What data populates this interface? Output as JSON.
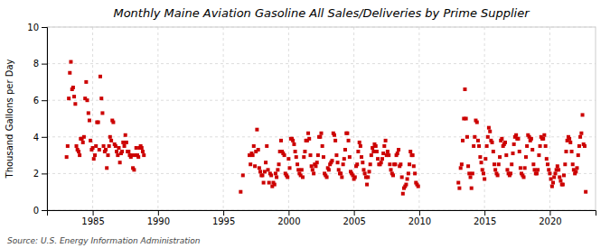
{
  "chart_data": {
    "type": "scatter",
    "title": "Monthly Maine Aviation Gasoline All Sales/Deliveries by Prime Supplier",
    "y_label": "Thousand Gallons per Day",
    "source": "Source: U.S. Energy Information Administration",
    "color": "#cc0000",
    "marker": "square",
    "grid": true,
    "xlim": [
      1981.5,
      2023.5
    ],
    "ylim": [
      0,
      10
    ],
    "xticks": [
      1985,
      1990,
      1995,
      2000,
      2005,
      2010,
      2015,
      2020
    ],
    "yticks": [
      0,
      2,
      4,
      6,
      8,
      10
    ],
    "x": [
      1983.0,
      1983.08,
      1983.17,
      1983.25,
      1983.33,
      1983.42,
      1983.5,
      1983.58,
      1983.67,
      1983.75,
      1983.83,
      1983.92,
      1984.0,
      1984.08,
      1984.17,
      1984.25,
      1984.33,
      1984.42,
      1984.5,
      1984.58,
      1984.67,
      1984.75,
      1984.83,
      1984.92,
      1985.0,
      1985.08,
      1985.17,
      1985.25,
      1985.33,
      1985.42,
      1985.5,
      1985.58,
      1985.67,
      1985.75,
      1985.83,
      1985.92,
      1986.0,
      1986.08,
      1986.17,
      1986.25,
      1986.33,
      1986.42,
      1986.5,
      1986.58,
      1986.67,
      1986.75,
      1986.83,
      1986.92,
      1987.0,
      1987.08,
      1987.17,
      1987.25,
      1987.33,
      1987.42,
      1987.5,
      1987.58,
      1987.67,
      1987.75,
      1987.83,
      1987.92,
      1988.0,
      1988.08,
      1988.17,
      1988.25,
      1988.33,
      1988.42,
      1988.5,
      1988.58,
      1988.67,
      1988.75,
      1988.83,
      1988.92,
      1996.33,
      1996.5,
      1997.0,
      1997.08,
      1997.17,
      1997.25,
      1997.33,
      1997.42,
      1997.5,
      1997.58,
      1997.67,
      1997.75,
      1997.83,
      1997.92,
      1998.0,
      1998.08,
      1998.17,
      1998.25,
      1998.33,
      1998.42,
      1998.5,
      1998.58,
      1998.67,
      1998.75,
      1998.83,
      1998.92,
      1999.0,
      1999.08,
      1999.17,
      1999.25,
      1999.33,
      1999.42,
      1999.5,
      1999.58,
      1999.67,
      1999.75,
      1999.83,
      1999.92,
      2000.0,
      2000.08,
      2000.17,
      2000.25,
      2000.33,
      2000.42,
      2000.5,
      2000.58,
      2000.67,
      2000.75,
      2000.83,
      2000.92,
      2001.0,
      2001.08,
      2001.17,
      2001.25,
      2001.33,
      2001.42,
      2001.5,
      2001.58,
      2001.67,
      2001.75,
      2001.83,
      2001.92,
      2002.0,
      2002.08,
      2002.17,
      2002.25,
      2002.33,
      2002.42,
      2002.5,
      2002.58,
      2002.67,
      2002.75,
      2002.83,
      2002.92,
      2003.0,
      2003.08,
      2003.17,
      2003.25,
      2003.33,
      2003.42,
      2003.5,
      2003.58,
      2003.67,
      2003.75,
      2003.83,
      2003.92,
      2004.0,
      2004.08,
      2004.17,
      2004.25,
      2004.33,
      2004.42,
      2004.5,
      2004.58,
      2004.67,
      2004.75,
      2004.83,
      2004.92,
      2005.0,
      2005.08,
      2005.17,
      2005.25,
      2005.33,
      2005.42,
      2005.5,
      2005.58,
      2005.67,
      2005.75,
      2005.83,
      2005.92,
      2006.0,
      2006.08,
      2006.17,
      2006.25,
      2006.33,
      2006.42,
      2006.5,
      2006.58,
      2006.67,
      2006.75,
      2006.83,
      2006.92,
      2007.0,
      2007.08,
      2007.17,
      2007.25,
      2007.33,
      2007.42,
      2007.5,
      2007.58,
      2007.67,
      2007.75,
      2007.83,
      2007.92,
      2008.0,
      2008.08,
      2008.17,
      2008.25,
      2008.33,
      2008.42,
      2008.5,
      2008.58,
      2008.67,
      2008.75,
      2008.83,
      2008.92,
      2009.0,
      2009.08,
      2009.17,
      2009.25,
      2009.33,
      2009.42,
      2009.5,
      2009.58,
      2009.67,
      2009.75,
      2009.83,
      2009.92,
      2013.0,
      2013.08,
      2013.17,
      2013.25,
      2013.33,
      2013.42,
      2013.5,
      2013.58,
      2013.67,
      2013.75,
      2013.83,
      2013.92,
      2014.0,
      2014.08,
      2014.17,
      2014.25,
      2014.33,
      2014.42,
      2014.5,
      2014.58,
      2014.67,
      2014.75,
      2014.83,
      2014.92,
      2015.0,
      2015.08,
      2015.17,
      2015.25,
      2015.33,
      2015.42,
      2015.5,
      2015.58,
      2015.67,
      2015.75,
      2015.83,
      2015.92,
      2016.0,
      2016.08,
      2016.17,
      2016.25,
      2016.33,
      2016.42,
      2016.5,
      2016.58,
      2016.67,
      2016.75,
      2016.83,
      2016.92,
      2017.0,
      2017.08,
      2017.17,
      2017.25,
      2017.33,
      2017.42,
      2017.5,
      2017.58,
      2017.67,
      2017.75,
      2017.83,
      2017.92,
      2018.0,
      2018.08,
      2018.17,
      2018.25,
      2018.33,
      2018.42,
      2018.5,
      2018.58,
      2018.67,
      2018.75,
      2018.83,
      2018.92,
      2019.0,
      2019.08,
      2019.17,
      2019.25,
      2019.33,
      2019.42,
      2019.5,
      2019.58,
      2019.67,
      2019.75,
      2019.83,
      2019.92,
      2020.0,
      2020.08,
      2020.17,
      2020.25,
      2020.33,
      2020.42,
      2020.5,
      2020.58,
      2020.67,
      2020.75,
      2020.83,
      2020.92,
      2021.0,
      2021.08,
      2021.17,
      2021.25,
      2021.33,
      2021.42,
      2021.5,
      2021.58,
      2021.67,
      2021.75,
      2021.83,
      2021.92,
      2022.0,
      2022.08,
      2022.17,
      2022.25,
      2022.33,
      2022.42,
      2022.5,
      2022.58,
      2022.67,
      2022.75
    ],
    "values": [
      2.9,
      3.5,
      6.1,
      7.5,
      8.1,
      6.6,
      6.7,
      6.2,
      5.8,
      3.5,
      3.3,
      3.2,
      3.0,
      3.9,
      3.9,
      3.7,
      4.0,
      6.1,
      7.0,
      6.0,
      5.3,
      4.9,
      3.8,
      3.3,
      3.4,
      2.8,
      3.0,
      3.5,
      4.8,
      4.8,
      3.3,
      7.3,
      6.1,
      5.3,
      3.5,
      3.2,
      3.3,
      2.3,
      3.0,
      3.5,
      4.0,
      3.8,
      4.9,
      4.8,
      3.6,
      3.5,
      3.2,
      3.0,
      3.4,
      2.6,
      3.1,
      3.2,
      3.7,
      3.5,
      4.1,
      3.7,
      3.2,
      3.2,
      3.0,
      2.9,
      3.0,
      2.3,
      2.2,
      3.0,
      3.4,
      3.0,
      2.9,
      3.4,
      3.5,
      3.4,
      3.2,
      3.0,
      1.0,
      1.9,
      3.0,
      2.5,
      3.1,
      3.0,
      3.5,
      2.4,
      3.2,
      4.4,
      3.3,
      2.3,
      2.1,
      1.9,
      1.9,
      1.5,
      2.1,
      2.6,
      3.5,
      2.2,
      1.5,
      2.0,
      1.9,
      1.3,
      1.5,
      1.4,
      2.0,
      1.8,
      2.2,
      2.5,
      3.2,
      3.8,
      3.2,
      3.1,
      3.0,
      2.0,
      1.9,
      1.8,
      2.8,
      2.3,
      3.9,
      3.9,
      3.8,
      3.6,
      3.2,
      2.9,
      2.5,
      2.2,
      2.0,
      1.9,
      2.2,
      1.8,
      2.9,
      3.2,
      3.8,
      3.8,
      4.2,
      3.9,
      3.0,
      2.4,
      2.2,
      2.0,
      2.5,
      2.4,
      2.6,
      3.0,
      4.0,
      4.0,
      4.2,
      3.5,
      2.9,
      2.0,
      1.9,
      1.8,
      2.3,
      2.2,
      2.5,
      2.6,
      2.7,
      4.2,
      4.1,
      3.8,
      3.0,
      2.6,
      2.2,
      2.0,
      2.0,
      1.8,
      2.5,
      2.8,
      3.3,
      4.2,
      4.2,
      3.8,
      2.9,
      2.1,
      2.0,
      1.9,
      1.7,
      1.8,
      2.4,
      2.5,
      3.2,
      3.7,
      3.5,
      2.9,
      2.6,
      2.2,
      2.0,
      1.8,
      1.4,
      1.8,
      2.1,
      2.5,
      3.0,
      3.4,
      3.2,
      3.6,
      3.5,
      3.2,
      2.8,
      2.5,
      2.5,
      2.6,
      2.8,
      3.1,
      3.5,
      3.8,
      3.0,
      3.2,
      3.0,
      2.5,
      2.2,
      2.0,
      1.9,
      2.5,
      2.5,
      3.0,
      3.1,
      3.3,
      2.4,
      2.5,
      1.8,
      0.9,
      1.2,
      1.3,
      1.4,
      1.7,
      2.0,
      2.5,
      3.2,
      3.0,
      3.0,
      2.4,
      2.0,
      1.5,
      1.4,
      1.3,
      1.5,
      1.2,
      2.3,
      2.5,
      3.8,
      5.0,
      6.6,
      5.0,
      4.0,
      2.4,
      2.0,
      1.8,
      1.2,
      2.0,
      3.5,
      4.0,
      4.9,
      4.8,
      3.8,
      3.5,
      2.9,
      2.6,
      2.2,
      2.0,
      1.7,
      2.8,
      3.5,
      4.0,
      4.5,
      4.3,
      3.8,
      3.7,
      3.2,
      2.5,
      2.2,
      2.0,
      1.9,
      2.5,
      2.9,
      3.8,
      3.9,
      3.5,
      3.6,
      3.7,
      3.0,
      2.2,
      2.0,
      1.9,
      2.0,
      2.5,
      3.1,
      3.6,
      4.0,
      4.1,
      3.9,
      3.9,
      3.2,
      2.3,
      2.0,
      1.9,
      1.8,
      2.3,
      2.9,
      3.5,
      4.1,
      4.0,
      3.8,
      3.9,
      3.3,
      2.5,
      2.2,
      2.0,
      2.0,
      2.2,
      3.0,
      3.5,
      4.0,
      3.9,
      3.9,
      4.1,
      3.5,
      2.8,
      2.5,
      2.2,
      2.0,
      1.7,
      1.3,
      1.5,
      1.8,
      2.0,
      2.2,
      2.4,
      2.2,
      1.8,
      1.6,
      1.4,
      1.4,
      1.9,
      2.5,
      3.2,
      3.8,
      4.0,
      3.9,
      3.7,
      3.2,
      2.5,
      2.2,
      2.0,
      2.1,
      2.3,
      3.0,
      3.5,
      4.0,
      4.2,
      5.2,
      3.6,
      3.5,
      1.0
    ]
  }
}
